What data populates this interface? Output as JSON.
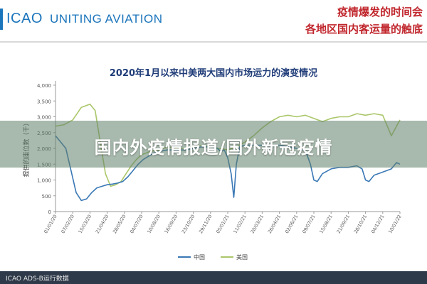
{
  "header": {
    "logo": "ICAO",
    "tagline": "UNITING AVIATION",
    "headline_line1": "疫情爆发的时间会",
    "headline_line2": "各地区国内客运量的触底"
  },
  "overlay": {
    "banner_text": "国内外疫情报道/国外新冠疫情"
  },
  "footer": {
    "text": "ICAO ADS-B运行数据"
  },
  "colors": {
    "china": "#3a78b5",
    "usa": "#aac76a",
    "accent_red": "#c0272d",
    "brand_blue": "#1b75bc"
  },
  "chart_data": {
    "type": "line",
    "title": "2020年1月以来中美两大国内市场运力的演变情况",
    "ylabel": "提供的座位数（千）",
    "xlabel": "",
    "ylim": [
      0,
      4000
    ],
    "yticks": [
      "0",
      "500",
      "1,000",
      "1,500",
      "2,000",
      "2,500",
      "3,000",
      "3,500",
      "4,000"
    ],
    "xticks": [
      "01/01/20",
      "07/02/20",
      "15/03/20",
      "21/04/20",
      "28/05/20",
      "04/07/20",
      "10/08/20",
      "16/09/20",
      "23/10/20",
      "29/11/20",
      "05/01/21",
      "11/02/21",
      "20/03/21",
      "26/04/21",
      "02/06/21",
      "09/07/21",
      "15/08/21",
      "21/09/21",
      "28/10/21",
      "04/12/21",
      "10/01/22"
    ],
    "legend_position": "bottom-center",
    "grid": false,
    "series": [
      {
        "name": "中国",
        "points": [
          [
            0,
            2400
          ],
          [
            0.3,
            2200
          ],
          [
            0.6,
            2000
          ],
          [
            0.9,
            1300
          ],
          [
            1.2,
            600
          ],
          [
            1.5,
            350
          ],
          [
            1.8,
            400
          ],
          [
            2.1,
            600
          ],
          [
            2.4,
            750
          ],
          [
            2.7,
            800
          ],
          [
            3.0,
            850
          ],
          [
            3.3,
            870
          ],
          [
            3.6,
            900
          ],
          [
            3.9,
            950
          ],
          [
            4.2,
            1100
          ],
          [
            4.5,
            1300
          ],
          [
            4.8,
            1500
          ],
          [
            5.1,
            1650
          ],
          [
            5.4,
            1750
          ],
          [
            5.7,
            1850
          ],
          [
            6.0,
            1900
          ],
          [
            6.5,
            1950
          ],
          [
            7.0,
            1950
          ],
          [
            7.5,
            1950
          ],
          [
            8.0,
            2000
          ],
          [
            8.5,
            2050
          ],
          [
            9.0,
            2050
          ],
          [
            9.4,
            2000
          ],
          [
            9.6,
            1900
          ],
          [
            9.8,
            1950
          ],
          [
            10.0,
            1700
          ],
          [
            10.2,
            1200
          ],
          [
            10.35,
            450
          ],
          [
            10.5,
            1500
          ],
          [
            10.7,
            2050
          ],
          [
            11.0,
            2100
          ],
          [
            11.5,
            2100
          ],
          [
            12.0,
            2100
          ],
          [
            12.5,
            2100
          ],
          [
            13.0,
            2100
          ],
          [
            13.5,
            2050
          ],
          [
            14.0,
            2000
          ],
          [
            14.5,
            1950
          ],
          [
            14.8,
            1500
          ],
          [
            15.0,
            1000
          ],
          [
            15.2,
            950
          ],
          [
            15.5,
            1200
          ],
          [
            16.0,
            1350
          ],
          [
            16.5,
            1400
          ],
          [
            17.0,
            1400
          ],
          [
            17.5,
            1450
          ],
          [
            17.8,
            1350
          ],
          [
            18.0,
            1000
          ],
          [
            18.2,
            950
          ],
          [
            18.5,
            1150
          ],
          [
            19.0,
            1250
          ],
          [
            19.5,
            1350
          ],
          [
            19.8,
            1550
          ],
          [
            20.0,
            1500
          ]
        ]
      },
      {
        "name": "美国",
        "points": [
          [
            0,
            2700
          ],
          [
            0.5,
            2750
          ],
          [
            1.0,
            2900
          ],
          [
            1.5,
            3300
          ],
          [
            2.0,
            3400
          ],
          [
            2.3,
            3200
          ],
          [
            2.6,
            2200
          ],
          [
            2.9,
            1200
          ],
          [
            3.2,
            800
          ],
          [
            3.5,
            850
          ],
          [
            3.8,
            950
          ],
          [
            4.1,
            1200
          ],
          [
            4.4,
            1450
          ],
          [
            4.7,
            1650
          ],
          [
            5.0,
            1800
          ],
          [
            5.5,
            1900
          ],
          [
            6.0,
            1950
          ],
          [
            6.5,
            2050
          ],
          [
            7.0,
            2000
          ],
          [
            7.5,
            2000
          ],
          [
            8.0,
            2050
          ],
          [
            8.5,
            2100
          ],
          [
            9.0,
            2050
          ],
          [
            9.5,
            2000
          ],
          [
            10.0,
            1950
          ],
          [
            10.5,
            2050
          ],
          [
            11.0,
            2200
          ],
          [
            11.5,
            2400
          ],
          [
            12.0,
            2650
          ],
          [
            12.5,
            2850
          ],
          [
            13.0,
            3000
          ],
          [
            13.5,
            3050
          ],
          [
            14.0,
            3000
          ],
          [
            14.5,
            3050
          ],
          [
            15.0,
            2950
          ],
          [
            15.5,
            2850
          ],
          [
            16.0,
            2950
          ],
          [
            16.5,
            3000
          ],
          [
            17.0,
            3000
          ],
          [
            17.5,
            3100
          ],
          [
            18.0,
            3050
          ],
          [
            18.5,
            3100
          ],
          [
            19.0,
            3050
          ],
          [
            19.5,
            2400
          ],
          [
            19.8,
            2700
          ],
          [
            20.0,
            2900
          ]
        ]
      }
    ]
  }
}
